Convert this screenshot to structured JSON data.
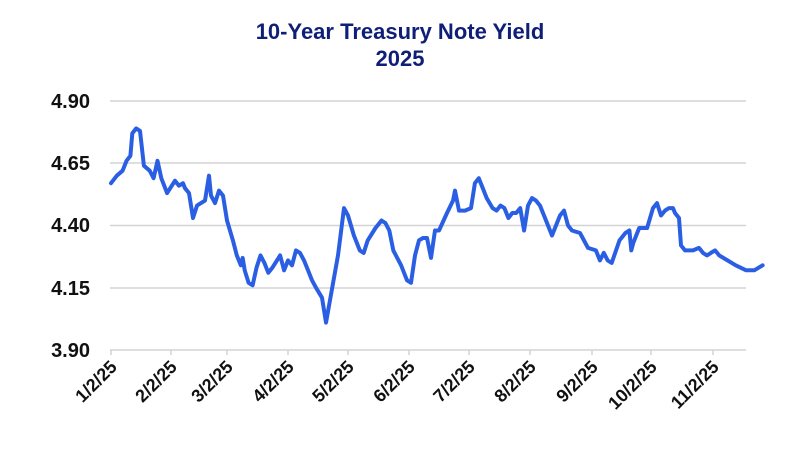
{
  "title": "10-Year Treasury Note Yield",
  "subtitle": "2025",
  "colors": {
    "line": "#2b5fe3",
    "title": "#0f1f78",
    "grid": "#d0d0d0",
    "text": "#111111"
  },
  "chart_data": {
    "type": "line",
    "title": "10-Year Treasury Note Yield",
    "subtitle": "2025",
    "xlabel": "",
    "ylabel": "",
    "ylim": [
      3.9,
      4.9
    ],
    "yticks": [
      "4.90",
      "4.65",
      "4.40",
      "4.15",
      "3.90"
    ],
    "xticks": [
      "1/2/25",
      "2/2/25",
      "3/2/25",
      "4/2/25",
      "5/2/25",
      "6/2/25",
      "7/2/25",
      "8/2/25",
      "9/2/25",
      "10/2/25",
      "11/2/25"
    ],
    "grid": "horizontal",
    "legend": "none",
    "series": [
      {
        "name": "10-Year Treasury Note Yield",
        "points": [
          [
            "1/2/25",
            4.57
          ],
          [
            "1/5/25",
            4.6
          ],
          [
            "1/8/25",
            4.62
          ],
          [
            "1/10/25",
            4.66
          ],
          [
            "1/12/25",
            4.68
          ],
          [
            "1/13/25",
            4.77
          ],
          [
            "1/15/25",
            4.79
          ],
          [
            "1/17/25",
            4.78
          ],
          [
            "1/19/25",
            4.64
          ],
          [
            "1/22/25",
            4.62
          ],
          [
            "1/24/25",
            4.59
          ],
          [
            "1/26/25",
            4.66
          ],
          [
            "1/28/25",
            4.59
          ],
          [
            "1/31/25",
            4.53
          ],
          [
            "2/4/25",
            4.58
          ],
          [
            "2/6/25",
            4.56
          ],
          [
            "2/8/25",
            4.57
          ],
          [
            "2/9/25",
            4.55
          ],
          [
            "2/11/25",
            4.53
          ],
          [
            "2/13/25",
            4.43
          ],
          [
            "2/15/25",
            4.48
          ],
          [
            "2/19/25",
            4.5
          ],
          [
            "2/21/25",
            4.6
          ],
          [
            "2/22/25",
            4.52
          ],
          [
            "2/24/25",
            4.49
          ],
          [
            "2/26/25",
            4.54
          ],
          [
            "2/28/25",
            4.52
          ],
          [
            "3/2/25",
            4.42
          ],
          [
            "3/5/25",
            4.34
          ],
          [
            "3/7/25",
            4.28
          ],
          [
            "3/9/25",
            4.24
          ],
          [
            "3/10/25",
            4.27
          ],
          [
            "3/11/25",
            4.22
          ],
          [
            "3/13/25",
            4.17
          ],
          [
            "3/15/25",
            4.16
          ],
          [
            "3/17/25",
            4.23
          ],
          [
            "3/19/25",
            4.28
          ],
          [
            "3/21/25",
            4.25
          ],
          [
            "3/23/25",
            4.21
          ],
          [
            "3/25/25",
            4.23
          ],
          [
            "3/29/25",
            4.28
          ],
          [
            "3/31/25",
            4.22
          ],
          [
            "4/2/25",
            4.26
          ],
          [
            "4/4/25",
            4.24
          ],
          [
            "4/6/25",
            4.3
          ],
          [
            "4/8/25",
            4.29
          ],
          [
            "4/10/25",
            4.26
          ],
          [
            "4/12/25",
            4.22
          ],
          [
            "4/14/25",
            4.18
          ],
          [
            "4/16/25",
            4.15
          ],
          [
            "4/19/25",
            4.11
          ],
          [
            "4/21/25",
            4.01
          ],
          [
            "4/23/25",
            4.1
          ],
          [
            "4/27/25",
            4.28
          ],
          [
            "4/30/25",
            4.47
          ],
          [
            "5/2/25",
            4.44
          ],
          [
            "5/5/25",
            4.36
          ],
          [
            "5/8/25",
            4.3
          ],
          [
            "5/10/25",
            4.29
          ],
          [
            "5/12/25",
            4.34
          ],
          [
            "5/16/25",
            4.39
          ],
          [
            "5/19/25",
            4.42
          ],
          [
            "5/21/25",
            4.41
          ],
          [
            "5/23/25",
            4.38
          ],
          [
            "5/25/25",
            4.3
          ],
          [
            "5/29/25",
            4.24
          ],
          [
            "6/1/25",
            4.18
          ],
          [
            "6/3/25",
            4.17
          ],
          [
            "6/5/25",
            4.28
          ],
          [
            "6/7/25",
            4.34
          ],
          [
            "6/9/25",
            4.35
          ],
          [
            "6/11/25",
            4.35
          ],
          [
            "6/13/25",
            4.27
          ],
          [
            "6/15/25",
            4.38
          ],
          [
            "6/17/25",
            4.38
          ],
          [
            "6/21/25",
            4.45
          ],
          [
            "6/24/25",
            4.5
          ],
          [
            "6/25/25",
            4.54
          ],
          [
            "6/27/25",
            4.46
          ],
          [
            "6/30/25",
            4.46
          ],
          [
            "7/3/25",
            4.47
          ],
          [
            "7/5/25",
            4.57
          ],
          [
            "7/7/25",
            4.59
          ],
          [
            "7/9/25",
            4.55
          ],
          [
            "7/11/25",
            4.51
          ],
          [
            "7/14/25",
            4.47
          ],
          [
            "7/16/25",
            4.46
          ],
          [
            "7/18/25",
            4.48
          ],
          [
            "7/20/25",
            4.47
          ],
          [
            "7/22/25",
            4.43
          ],
          [
            "7/24/25",
            4.45
          ],
          [
            "7/26/25",
            4.45
          ],
          [
            "7/28/25",
            4.47
          ],
          [
            "7/30/25",
            4.38
          ],
          [
            "8/1/25",
            4.48
          ],
          [
            "8/3/25",
            4.51
          ],
          [
            "8/5/25",
            4.5
          ],
          [
            "8/7/25",
            4.48
          ],
          [
            "8/9/25",
            4.44
          ],
          [
            "8/13/25",
            4.36
          ],
          [
            "8/15/25",
            4.4
          ],
          [
            "8/17/25",
            4.44
          ],
          [
            "8/19/25",
            4.46
          ],
          [
            "8/21/25",
            4.4
          ],
          [
            "8/23/25",
            4.38
          ],
          [
            "8/27/25",
            4.37
          ],
          [
            "8/31/25",
            4.31
          ],
          [
            "9/4/25",
            4.3
          ],
          [
            "9/6/25",
            4.26
          ],
          [
            "9/8/25",
            4.29
          ],
          [
            "9/10/25",
            4.26
          ],
          [
            "9/12/25",
            4.25
          ],
          [
            "9/16/25",
            4.34
          ],
          [
            "9/19/25",
            4.37
          ],
          [
            "9/21/25",
            4.38
          ],
          [
            "9/22/25",
            4.3
          ],
          [
            "9/23/25",
            4.33
          ],
          [
            "9/26/25",
            4.39
          ],
          [
            "9/30/25",
            4.39
          ],
          [
            "10/3/25",
            4.47
          ],
          [
            "10/5/25",
            4.49
          ],
          [
            "10/7/25",
            4.44
          ],
          [
            "10/9/25",
            4.46
          ],
          [
            "10/11/25",
            4.47
          ],
          [
            "10/13/25",
            4.47
          ],
          [
            "10/14/25",
            4.45
          ],
          [
            "10/16/25",
            4.43
          ],
          [
            "10/17/25",
            4.32
          ],
          [
            "10/19/25",
            4.3
          ],
          [
            "10/23/25",
            4.3
          ],
          [
            "10/26/25",
            4.31
          ],
          [
            "10/28/25",
            4.29
          ],
          [
            "10/30/25",
            4.28
          ],
          [
            "11/1/25",
            4.29
          ],
          [
            "11/3/25",
            4.3
          ],
          [
            "11/5/25",
            4.28
          ],
          [
            "11/9/25",
            4.26
          ],
          [
            "11/13/25",
            4.24
          ],
          [
            "11/18/25",
            4.22
          ],
          [
            "11/22/25",
            4.22
          ],
          [
            "11/26/25",
            4.24
          ]
        ]
      }
    ]
  }
}
